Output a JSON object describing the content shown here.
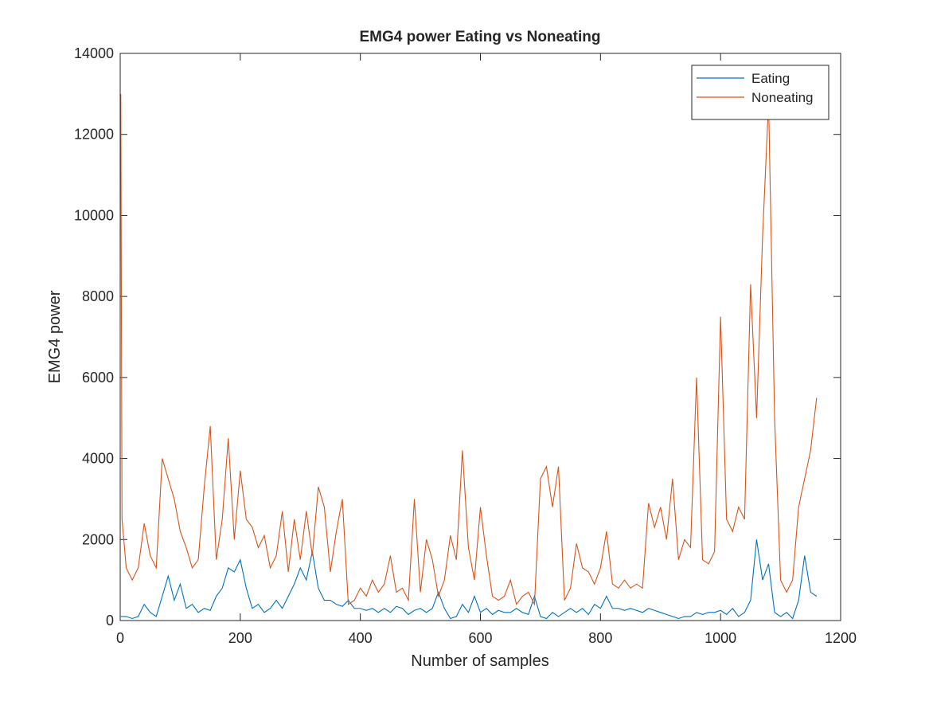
{
  "chart_data": {
    "type": "line",
    "title": "EMG4 power Eating vs Noneating",
    "x_label": "Number of samples",
    "y_label": "EMG4 power",
    "x": [
      1,
      3,
      10,
      20,
      30,
      40,
      50,
      60,
      70,
      80,
      90,
      100,
      110,
      120,
      130,
      140,
      150,
      160,
      170,
      180,
      190,
      200,
      210,
      220,
      230,
      240,
      250,
      260,
      270,
      280,
      290,
      300,
      310,
      320,
      330,
      340,
      350,
      360,
      370,
      380,
      390,
      400,
      410,
      420,
      430,
      440,
      450,
      460,
      470,
      480,
      490,
      500,
      510,
      520,
      530,
      540,
      550,
      560,
      570,
      580,
      590,
      600,
      610,
      620,
      630,
      640,
      650,
      660,
      670,
      680,
      690,
      700,
      710,
      720,
      730,
      740,
      750,
      760,
      770,
      780,
      790,
      800,
      810,
      820,
      830,
      840,
      850,
      860,
      870,
      880,
      890,
      900,
      910,
      920,
      930,
      940,
      950,
      960,
      970,
      980,
      990,
      1000,
      1010,
      1020,
      1030,
      1040,
      1050,
      1060,
      1070,
      1080,
      1090,
      1100,
      1110,
      1120,
      1130,
      1140,
      1150,
      1160
    ],
    "series": [
      {
        "name": "Eating",
        "color": "#0072bd",
        "values": [
          100,
          100,
          100,
          50,
          100,
          400,
          200,
          100,
          600,
          1100,
          500,
          900,
          300,
          400,
          200,
          300,
          250,
          600,
          800,
          1300,
          1200,
          1500,
          800,
          300,
          400,
          200,
          300,
          500,
          300,
          600,
          900,
          1300,
          1000,
          1700,
          800,
          500,
          500,
          400,
          350,
          500,
          300,
          300,
          250,
          300,
          200,
          300,
          200,
          350,
          300,
          150,
          250,
          300,
          200,
          300,
          700,
          300,
          50,
          100,
          400,
          200,
          600,
          200,
          300,
          150,
          250,
          200,
          200,
          300,
          200,
          150,
          600,
          100,
          50,
          200,
          100,
          200,
          300,
          200,
          300,
          150,
          400,
          300,
          600,
          300,
          300,
          250,
          300,
          250,
          200,
          300,
          250,
          200,
          150,
          100,
          50,
          100,
          100,
          200,
          150,
          200,
          200,
          250,
          150,
          300,
          100,
          200,
          500,
          2000,
          1000,
          1400,
          200,
          100,
          200,
          50,
          500,
          1600,
          700,
          600
        ]
      },
      {
        "name": "Noneating",
        "color": "#d95319",
        "values": [
          13000,
          2500,
          1300,
          1000,
          1300,
          2400,
          1600,
          1300,
          4000,
          3500,
          3000,
          2200,
          1800,
          1300,
          1500,
          3300,
          4800,
          1500,
          2500,
          4500,
          2000,
          3700,
          2500,
          2300,
          1800,
          2100,
          1300,
          1600,
          2700,
          1200,
          2500,
          1500,
          2700,
          1600,
          3300,
          2800,
          1200,
          2200,
          3000,
          400,
          500,
          800,
          600,
          1000,
          700,
          900,
          1600,
          700,
          800,
          500,
          3000,
          700,
          2000,
          1500,
          600,
          1000,
          2100,
          1500,
          4200,
          1800,
          1000,
          2800,
          1600,
          600,
          500,
          600,
          1000,
          400,
          600,
          700,
          400,
          3500,
          3800,
          2800,
          3800,
          500,
          800,
          1900,
          1300,
          1200,
          900,
          1300,
          2200,
          900,
          800,
          1000,
          800,
          900,
          800,
          2900,
          2300,
          2800,
          2000,
          3500,
          1500,
          2000,
          1800,
          6000,
          1500,
          1400,
          1700,
          7500,
          2500,
          2200,
          2800,
          2500,
          8300,
          5000,
          9500,
          12800,
          5000,
          1000,
          700,
          1000,
          2800,
          3500,
          4200,
          5500
        ]
      }
    ],
    "xlim": [
      0,
      1200
    ],
    "xticks": [
      0,
      200,
      400,
      600,
      800,
      1000,
      1200
    ],
    "ylim": [
      0,
      14000
    ],
    "yticks": [
      0,
      2000,
      4000,
      6000,
      8000,
      10000,
      12000,
      14000
    ],
    "grid": false,
    "legend": "northeast"
  }
}
